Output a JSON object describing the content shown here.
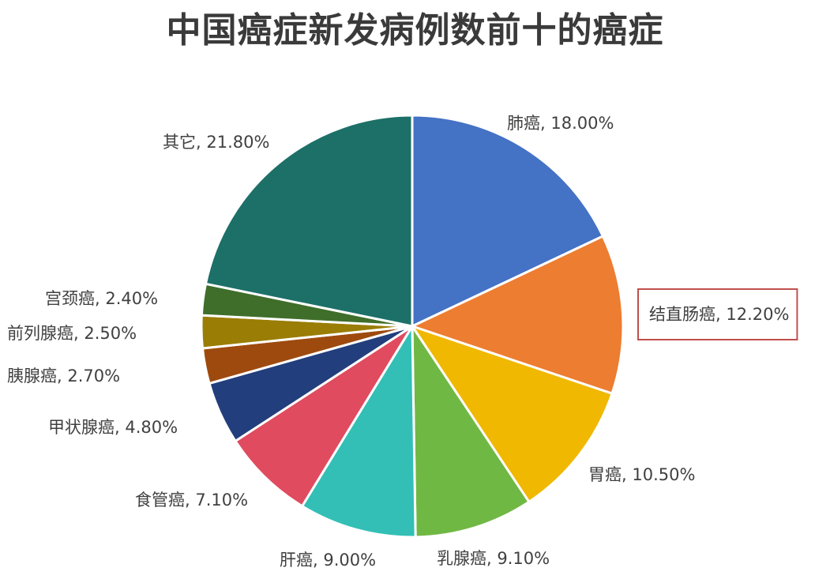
{
  "chart_data": {
    "type": "pie",
    "title": "中国癌症新发病例数前十的癌症",
    "slices": [
      {
        "name": "肺癌",
        "value": 18.0,
        "label": "肺癌, 18.00%",
        "color": "#4472C4"
      },
      {
        "name": "结直肠癌",
        "value": 12.2,
        "label": "结直肠癌, 12.20%",
        "color": "#ED7D31",
        "highlighted": true
      },
      {
        "name": "胃癌",
        "value": 10.5,
        "label": "胃癌, 10.50%",
        "color": "#F0B800"
      },
      {
        "name": "乳腺癌",
        "value": 9.1,
        "label": "乳腺癌, 9.10%",
        "color": "#70B844"
      },
      {
        "name": "肝癌",
        "value": 9.0,
        "label": "肝癌, 9.00%",
        "color": "#33BFB5"
      },
      {
        "name": "食管癌",
        "value": 7.1,
        "label": "食管癌, 7.10%",
        "color": "#E04B5F"
      },
      {
        "name": "甲状腺癌",
        "value": 4.8,
        "label": "甲状腺癌, 4.80%",
        "color": "#233E7C"
      },
      {
        "name": "胰腺癌",
        "value": 2.7,
        "label": "胰腺癌, 2.70%",
        "color": "#9E4A0E"
      },
      {
        "name": "前列腺癌",
        "value": 2.5,
        "label": "前列腺癌, 2.50%",
        "color": "#9A7D05"
      },
      {
        "name": "宫颈癌",
        "value": 2.4,
        "label": "宫颈癌, 2.40%",
        "color": "#3F6E2A"
      },
      {
        "name": "其它",
        "value": 21.8,
        "label": "其它, 21.80%",
        "color": "#1C7067"
      }
    ],
    "highlight_border_color": "#C0504D"
  }
}
